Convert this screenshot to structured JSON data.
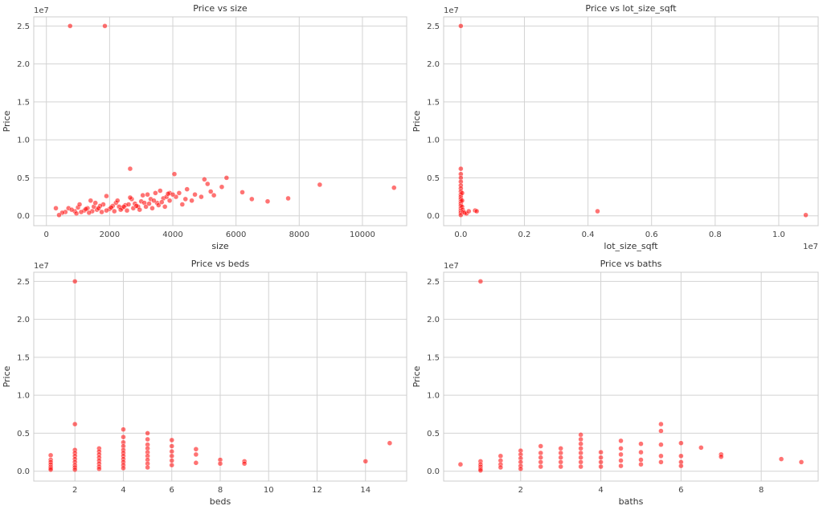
{
  "colors": {
    "point": "#ff0000",
    "grid": "#d3d3d3",
    "frame": "#cccccc",
    "background": "#ffffff"
  },
  "chart_data": [
    {
      "type": "scatter",
      "title": "Price vs size",
      "xlabel": "size",
      "ylabel": "Price",
      "y_offset_label": "1e7",
      "x_offset_label": "",
      "xlim": [
        -400,
        11400
      ],
      "ylim": [
        -0.13,
        2.62
      ],
      "xticks": [
        0,
        2000,
        4000,
        6000,
        8000,
        10000
      ],
      "xtick_labels": [
        "0",
        "2000",
        "4000",
        "6000",
        "8000",
        "10000"
      ],
      "yticks": [
        0.0,
        0.5,
        1.0,
        1.5,
        2.0,
        2.5
      ],
      "ytick_labels": [
        "0.0",
        "0.5",
        "1.0",
        "1.5",
        "2.0",
        "2.5"
      ],
      "grid": true,
      "points": [
        [
          750,
          2.5
        ],
        [
          1850,
          2.5
        ],
        [
          2650,
          0.62
        ],
        [
          4050,
          0.55
        ],
        [
          5700,
          0.5
        ],
        [
          5000,
          0.48
        ],
        [
          5100,
          0.42
        ],
        [
          8650,
          0.41
        ],
        [
          4450,
          0.35
        ],
        [
          5200,
          0.32
        ],
        [
          5550,
          0.38
        ],
        [
          6200,
          0.31
        ],
        [
          11000,
          0.37
        ],
        [
          5300,
          0.27
        ],
        [
          6500,
          0.22
        ],
        [
          7650,
          0.23
        ],
        [
          7000,
          0.19
        ],
        [
          4700,
          0.28
        ],
        [
          4900,
          0.25
        ],
        [
          4200,
          0.3
        ],
        [
          4600,
          0.2
        ],
        [
          3600,
          0.33
        ],
        [
          3900,
          0.3
        ],
        [
          3200,
          0.28
        ],
        [
          2700,
          0.22
        ],
        [
          1900,
          0.26
        ],
        [
          1400,
          0.2
        ],
        [
          1800,
          0.15
        ],
        [
          2200,
          0.17
        ],
        [
          2500,
          0.14
        ],
        [
          3300,
          0.22
        ],
        [
          3000,
          0.19
        ],
        [
          3700,
          0.23
        ],
        [
          3500,
          0.17
        ],
        [
          4100,
          0.25
        ],
        [
          3900,
          0.2
        ],
        [
          4300,
          0.15
        ],
        [
          2900,
          0.12
        ],
        [
          2400,
          0.1
        ],
        [
          2000,
          0.09
        ],
        [
          1600,
          0.08
        ],
        [
          1200,
          0.07
        ],
        [
          900,
          0.06
        ],
        [
          600,
          0.05
        ],
        [
          700,
          0.1
        ],
        [
          500,
          0.04
        ],
        [
          1000,
          0.11
        ],
        [
          1300,
          0.1
        ],
        [
          1500,
          0.12
        ],
        [
          1700,
          0.13
        ],
        [
          2100,
          0.13
        ],
        [
          2300,
          0.12
        ],
        [
          2600,
          0.15
        ],
        [
          2800,
          0.16
        ],
        [
          3100,
          0.17
        ],
        [
          3400,
          0.2
        ],
        [
          3800,
          0.25
        ],
        [
          1100,
          0.05
        ],
        [
          1450,
          0.06
        ],
        [
          1900,
          0.07
        ],
        [
          2350,
          0.08
        ],
        [
          2750,
          0.1
        ],
        [
          3150,
          0.12
        ],
        [
          3550,
          0.14
        ],
        [
          800,
          0.08
        ],
        [
          1250,
          0.09
        ],
        [
          1650,
          0.1
        ],
        [
          2050,
          0.11
        ],
        [
          2450,
          0.12
        ],
        [
          2850,
          0.13
        ],
        [
          3250,
          0.16
        ],
        [
          3650,
          0.18
        ],
        [
          4000,
          0.28
        ],
        [
          4400,
          0.22
        ],
        [
          950,
          0.03
        ],
        [
          1350,
          0.04
        ],
        [
          1750,
          0.05
        ],
        [
          2150,
          0.06
        ],
        [
          2550,
          0.07
        ],
        [
          2950,
          0.08
        ],
        [
          3350,
          0.1
        ],
        [
          3750,
          0.12
        ],
        [
          400,
          0.01
        ],
        [
          1050,
          0.15
        ],
        [
          1550,
          0.17
        ],
        [
          2250,
          0.2
        ],
        [
          2650,
          0.24
        ],
        [
          3050,
          0.27
        ],
        [
          3450,
          0.3
        ],
        [
          3850,
          0.29
        ],
        [
          300,
          0.1
        ]
      ]
    },
    {
      "type": "scatter",
      "title": "Price vs lot_size_sqft",
      "xlabel": "lot_size_sqft",
      "ylabel": "Price",
      "y_offset_label": "1e7",
      "x_offset_label": "1e7",
      "xlim": [
        -0.054,
        1.124
      ],
      "ylim": [
        -0.13,
        2.62
      ],
      "xticks": [
        0.0,
        0.2,
        0.4,
        0.6,
        0.8,
        1.0
      ],
      "xtick_labels": [
        "0.0",
        "0.2",
        "0.4",
        "0.6",
        "0.8",
        "1.0"
      ],
      "yticks": [
        0.0,
        0.5,
        1.0,
        1.5,
        2.0,
        2.5
      ],
      "ytick_labels": [
        "0.0",
        "0.5",
        "1.0",
        "1.5",
        "2.0",
        "2.5"
      ],
      "grid": true,
      "points": [
        [
          0.0,
          2.5
        ],
        [
          0.0,
          0.62
        ],
        [
          0.0,
          0.55
        ],
        [
          0.0,
          0.5
        ],
        [
          0.0,
          0.45
        ],
        [
          0.0,
          0.4
        ],
        [
          0.0,
          0.36
        ],
        [
          0.0,
          0.32
        ],
        [
          0.0,
          0.28
        ],
        [
          0.0,
          0.25
        ],
        [
          0.0,
          0.22
        ],
        [
          0.0,
          0.19
        ],
        [
          0.0,
          0.16
        ],
        [
          0.0,
          0.13
        ],
        [
          0.0,
          0.1
        ],
        [
          0.0,
          0.07
        ],
        [
          0.0,
          0.04
        ],
        [
          0.0,
          0.01
        ],
        [
          0.004,
          0.3
        ],
        [
          0.004,
          0.2
        ],
        [
          0.004,
          0.12
        ],
        [
          0.006,
          0.08
        ],
        [
          0.008,
          0.05
        ],
        [
          0.012,
          0.04
        ],
        [
          0.018,
          0.03
        ],
        [
          0.025,
          0.06
        ],
        [
          0.045,
          0.07
        ],
        [
          0.05,
          0.06
        ],
        [
          0.43,
          0.06
        ],
        [
          1.085,
          0.01
        ]
      ]
    },
    {
      "type": "scatter",
      "title": "Price vs beds",
      "xlabel": "beds",
      "ylabel": "Price",
      "y_offset_label": "1e7",
      "x_offset_label": "",
      "xlim": [
        0.3,
        15.7
      ],
      "ylim": [
        -0.13,
        2.62
      ],
      "xticks": [
        2,
        4,
        6,
        8,
        10,
        12,
        14
      ],
      "xtick_labels": [
        "2",
        "4",
        "6",
        "8",
        "10",
        "12",
        "14"
      ],
      "yticks": [
        0.0,
        0.5,
        1.0,
        1.5,
        2.0,
        2.5
      ],
      "ytick_labels": [
        "0.0",
        "0.5",
        "1.0",
        "1.5",
        "2.0",
        "2.5"
      ],
      "grid": true,
      "points": [
        [
          1,
          0.21
        ],
        [
          1,
          0.15
        ],
        [
          1,
          0.12
        ],
        [
          1,
          0.09
        ],
        [
          1,
          0.06
        ],
        [
          1,
          0.04
        ],
        [
          1,
          0.02
        ],
        [
          2,
          2.5
        ],
        [
          2,
          0.62
        ],
        [
          2,
          0.28
        ],
        [
          2,
          0.24
        ],
        [
          2,
          0.2
        ],
        [
          2,
          0.16
        ],
        [
          2,
          0.12
        ],
        [
          2,
          0.08
        ],
        [
          2,
          0.05
        ],
        [
          2,
          0.02
        ],
        [
          3,
          0.3
        ],
        [
          3,
          0.26
        ],
        [
          3,
          0.22
        ],
        [
          3,
          0.18
        ],
        [
          3,
          0.14
        ],
        [
          3,
          0.1
        ],
        [
          3,
          0.06
        ],
        [
          3,
          0.03
        ],
        [
          4,
          0.55
        ],
        [
          4,
          0.45
        ],
        [
          4,
          0.38
        ],
        [
          4,
          0.33
        ],
        [
          4,
          0.28
        ],
        [
          4,
          0.24
        ],
        [
          4,
          0.2
        ],
        [
          4,
          0.16
        ],
        [
          4,
          0.12
        ],
        [
          4,
          0.08
        ],
        [
          4,
          0.04
        ],
        [
          5,
          0.5
        ],
        [
          5,
          0.42
        ],
        [
          5,
          0.35
        ],
        [
          5,
          0.3
        ],
        [
          5,
          0.25
        ],
        [
          5,
          0.2
        ],
        [
          5,
          0.15
        ],
        [
          5,
          0.1
        ],
        [
          5,
          0.05
        ],
        [
          6,
          0.41
        ],
        [
          6,
          0.33
        ],
        [
          6,
          0.26
        ],
        [
          6,
          0.2
        ],
        [
          6,
          0.14
        ],
        [
          6,
          0.08
        ],
        [
          7,
          0.29
        ],
        [
          7,
          0.22
        ],
        [
          7,
          0.11
        ],
        [
          8,
          0.15
        ],
        [
          8,
          0.1
        ],
        [
          9,
          0.13
        ],
        [
          9,
          0.1
        ],
        [
          14,
          0.13
        ],
        [
          15,
          0.37
        ]
      ]
    },
    {
      "type": "scatter",
      "title": "Price vs baths",
      "xlabel": "baths",
      "ylabel": "Price",
      "y_offset_label": "1e7",
      "x_offset_label": "",
      "xlim": [
        0.08,
        9.42
      ],
      "ylim": [
        -0.13,
        2.62
      ],
      "xticks": [
        2,
        4,
        6,
        8
      ],
      "xtick_labels": [
        "2",
        "4",
        "6",
        "8"
      ],
      "yticks": [
        0.0,
        0.5,
        1.0,
        1.5,
        2.0,
        2.5
      ],
      "ytick_labels": [
        "0.0",
        "0.5",
        "1.0",
        "1.5",
        "2.0",
        "2.5"
      ],
      "grid": true,
      "points": [
        [
          0.5,
          0.09
        ],
        [
          1,
          2.5
        ],
        [
          1,
          0.13
        ],
        [
          1,
          0.09
        ],
        [
          1,
          0.06
        ],
        [
          1,
          0.03
        ],
        [
          1,
          0.01
        ],
        [
          1.5,
          0.2
        ],
        [
          1.5,
          0.14
        ],
        [
          1.5,
          0.09
        ],
        [
          1.5,
          0.05
        ],
        [
          2,
          0.27
        ],
        [
          2,
          0.22
        ],
        [
          2,
          0.17
        ],
        [
          2,
          0.12
        ],
        [
          2,
          0.07
        ],
        [
          2,
          0.03
        ],
        [
          2.5,
          0.33
        ],
        [
          2.5,
          0.24
        ],
        [
          2.5,
          0.18
        ],
        [
          2.5,
          0.12
        ],
        [
          2.5,
          0.06
        ],
        [
          3,
          0.3
        ],
        [
          3,
          0.24
        ],
        [
          3,
          0.18
        ],
        [
          3,
          0.12
        ],
        [
          3,
          0.06
        ],
        [
          3.5,
          0.48
        ],
        [
          3.5,
          0.42
        ],
        [
          3.5,
          0.36
        ],
        [
          3.5,
          0.3
        ],
        [
          3.5,
          0.24
        ],
        [
          3.5,
          0.18
        ],
        [
          3.5,
          0.12
        ],
        [
          3.5,
          0.06
        ],
        [
          4,
          0.25
        ],
        [
          4,
          0.18
        ],
        [
          4,
          0.12
        ],
        [
          4,
          0.06
        ],
        [
          4.5,
          0.4
        ],
        [
          4.5,
          0.3
        ],
        [
          4.5,
          0.22
        ],
        [
          4.5,
          0.14
        ],
        [
          4.5,
          0.07
        ],
        [
          5,
          0.36
        ],
        [
          5,
          0.25
        ],
        [
          5,
          0.15
        ],
        [
          5,
          0.09
        ],
        [
          5.5,
          0.62
        ],
        [
          5.5,
          0.53
        ],
        [
          5.5,
          0.35
        ],
        [
          5.5,
          0.2
        ],
        [
          5.5,
          0.12
        ],
        [
          6,
          0.37
        ],
        [
          6,
          0.2
        ],
        [
          6,
          0.12
        ],
        [
          6,
          0.07
        ],
        [
          6.5,
          0.31
        ],
        [
          7,
          0.22
        ],
        [
          7,
          0.19
        ],
        [
          8.5,
          0.16
        ],
        [
          9,
          0.12
        ]
      ]
    }
  ]
}
